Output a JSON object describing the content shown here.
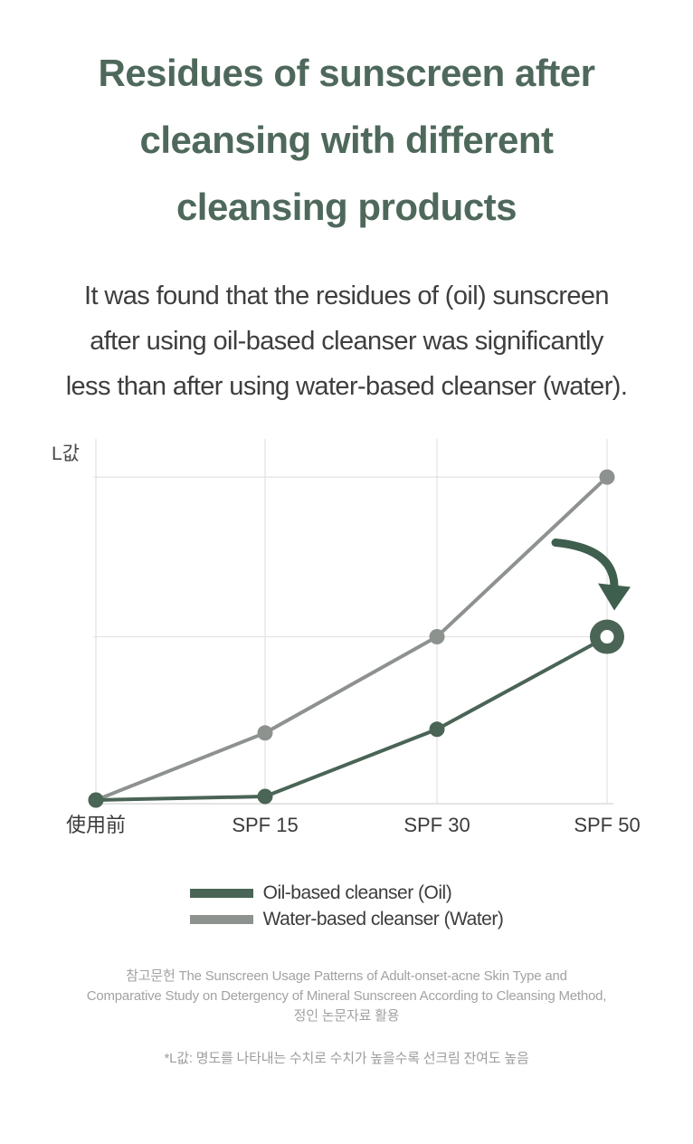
{
  "header": {
    "title_lines": [
      "Residues of sunscreen after",
      "cleansing with different",
      "cleansing products"
    ]
  },
  "description": {
    "lines": [
      "It was found that the residues of (oil) sunscreen",
      "after using oil-based cleanser was significantly",
      "less than after using water-based cleanser (water)."
    ]
  },
  "chart_data": {
    "type": "line",
    "ylabel": "L값",
    "categories": [
      "使用前",
      "SPF 15",
      "SPF 30",
      "SPF 50"
    ],
    "series": [
      {
        "id": "water",
        "name": "Water-based cleanser (Water)",
        "color": "#8e928f",
        "values": [
          1,
          19.5,
          46,
          90
        ],
        "marker": "dot"
      },
      {
        "id": "oil",
        "name": "Oil-based cleanser (Oil)",
        "color": "#4a6456",
        "values": [
          1,
          2,
          20.5,
          46
        ],
        "marker": "dot",
        "last_marker": "ring"
      }
    ],
    "ylim": [
      0,
      100
    ],
    "h_gridlines_at_values": [
      46,
      90
    ],
    "grid": "light",
    "legend_position": "bottom",
    "annotation": {
      "type": "curved-down-arrow",
      "points_to": "Oil-based cleanser at SPF 50",
      "color": "#3f5f4e"
    }
  },
  "legend": {
    "items": [
      {
        "label": "Oil-based cleanser (Oil)",
        "color": "#4a6456"
      },
      {
        "label": "Water-based cleanser (Water)",
        "color": "#8e928f"
      }
    ]
  },
  "footer": {
    "reference_lines": [
      "참고문헌 The Sunscreen Usage Patterns of Adult-onset-acne Skin Type and",
      "Comparative Study on Detergency of Mineral Sunscreen According to Cleansing Method,",
      "정인 논문자료 활용"
    ],
    "footnote": "*L값: 명도를 나타내는 수치로 수치가 높을수록 선크림 잔여도 높음"
  },
  "colors": {
    "title": "#4e695b",
    "body_text": "#3e3e40",
    "oil_series": "#4a6456",
    "water_series": "#8e928f",
    "accent_arrow": "#3f5f4e",
    "gridline": "#e3e3e3",
    "axis_line": "#dcdcdc",
    "footer_text": "#a2a2a2"
  }
}
